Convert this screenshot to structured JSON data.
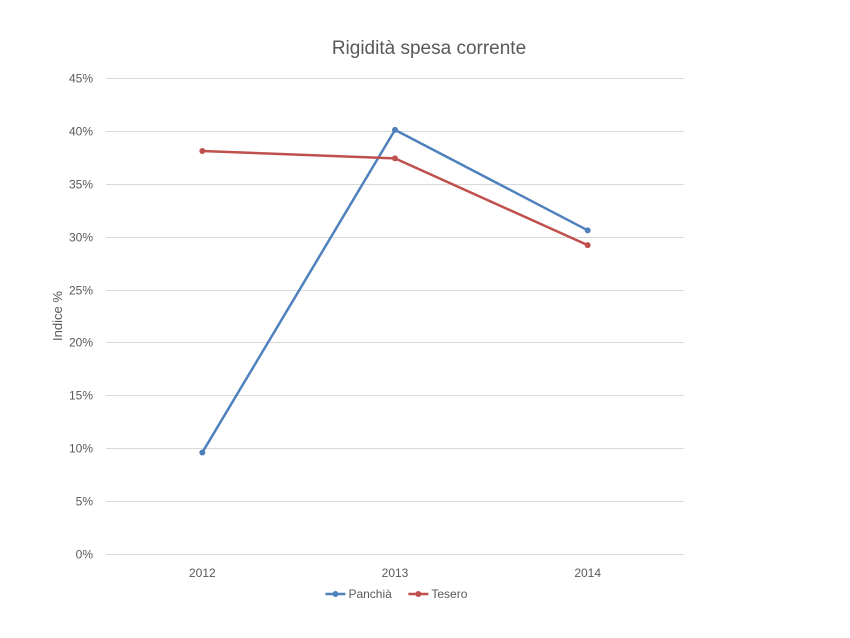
{
  "chart_data": {
    "type": "line",
    "title": "Rigidità spesa corrente",
    "xlabel": "",
    "ylabel": "Indice %",
    "categories": [
      "2012",
      "2013",
      "2014"
    ],
    "ylim": [
      0,
      45
    ],
    "yticks": [
      0,
      5,
      10,
      15,
      20,
      25,
      30,
      35,
      40,
      45
    ],
    "ytick_labels": [
      "0%",
      "5%",
      "10%",
      "15%",
      "20%",
      "25%",
      "30%",
      "35%",
      "40%",
      "45%"
    ],
    "grid": true,
    "legend_position": "bottom",
    "series": [
      {
        "name": "Panchià",
        "color": "#4F81BD",
        "values": [
          9.6,
          40.1,
          30.6
        ]
      },
      {
        "name": "Tesero",
        "color": "#C0504D",
        "values": [
          38.1,
          37.4,
          29.2
        ]
      }
    ]
  }
}
